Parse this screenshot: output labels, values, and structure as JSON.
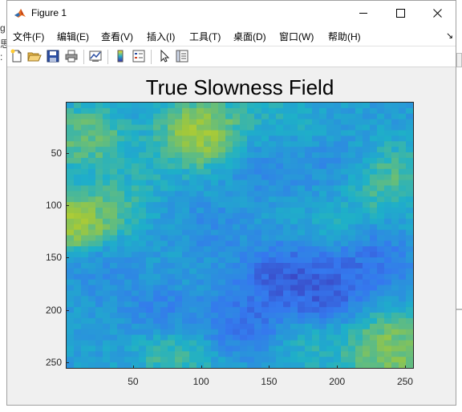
{
  "backdrop": {
    "left_glyphs": [
      "g",
      "思",
      ":"
    ]
  },
  "window": {
    "title": "Figure 1"
  },
  "menu": [
    {
      "label": "文件(F)",
      "name": "menu-file"
    },
    {
      "label": "编辑(E)",
      "name": "menu-edit"
    },
    {
      "label": "查看(V)",
      "name": "menu-view"
    },
    {
      "label": "插入(I)",
      "name": "menu-insert"
    },
    {
      "label": "工具(T)",
      "name": "menu-tools"
    },
    {
      "label": "桌面(D)",
      "name": "menu-desktop"
    },
    {
      "label": "窗口(W)",
      "name": "menu-window"
    },
    {
      "label": "帮助(H)",
      "name": "menu-help"
    }
  ],
  "toolbar": {
    "icons": [
      "new-figure-icon",
      "open-file-icon",
      "save-icon",
      "print-icon",
      "link-plot-icon",
      "colorbar-icon",
      "legend-icon",
      "pointer-icon",
      "property-inspector-icon"
    ]
  },
  "chart_data": {
    "type": "heatmap",
    "title": "True Slowness Field",
    "xlabel": "",
    "ylabel": "",
    "xlim": [
      0.5,
      256.5
    ],
    "ylim": [
      0.5,
      256.5
    ],
    "y_reversed": true,
    "xticks": [
      50,
      100,
      150,
      200,
      250
    ],
    "yticks": [
      50,
      100,
      150,
      200,
      250
    ],
    "colormap": "parula",
    "hotspots": [
      {
        "x": 100,
        "y": 30,
        "r": 26,
        "v": 0.95
      },
      {
        "x": 15,
        "y": 35,
        "r": 26,
        "v": 0.75
      },
      {
        "x": 8,
        "y": 115,
        "r": 24,
        "v": 0.95
      },
      {
        "x": 35,
        "y": 100,
        "r": 22,
        "v": 0.65
      },
      {
        "x": 60,
        "y": 60,
        "r": 22,
        "v": 0.55
      },
      {
        "x": 150,
        "y": 25,
        "r": 30,
        "v": 0.55
      },
      {
        "x": 238,
        "y": 75,
        "r": 28,
        "v": 0.7
      },
      {
        "x": 200,
        "y": 120,
        "r": 20,
        "v": 0.55
      },
      {
        "x": 240,
        "y": 240,
        "r": 28,
        "v": 0.85
      },
      {
        "x": 80,
        "y": 245,
        "r": 22,
        "v": 0.65
      },
      {
        "x": 180,
        "y": 240,
        "r": 20,
        "v": 0.55
      }
    ],
    "coldspots": [
      {
        "x": 160,
        "y": 170,
        "r": 26,
        "v": 0.05
      },
      {
        "x": 190,
        "y": 180,
        "r": 24,
        "v": 0.05
      },
      {
        "x": 220,
        "y": 155,
        "r": 28,
        "v": 0.15
      },
      {
        "x": 130,
        "y": 210,
        "r": 26,
        "v": 0.15
      },
      {
        "x": 30,
        "y": 165,
        "r": 24,
        "v": 0.3
      },
      {
        "x": 150,
        "y": 55,
        "r": 24,
        "v": 0.25
      },
      {
        "x": 200,
        "y": 60,
        "r": 22,
        "v": 0.3
      },
      {
        "x": 110,
        "y": 125,
        "r": 24,
        "v": 0.3
      },
      {
        "x": 70,
        "y": 200,
        "r": 22,
        "v": 0.25
      }
    ]
  }
}
